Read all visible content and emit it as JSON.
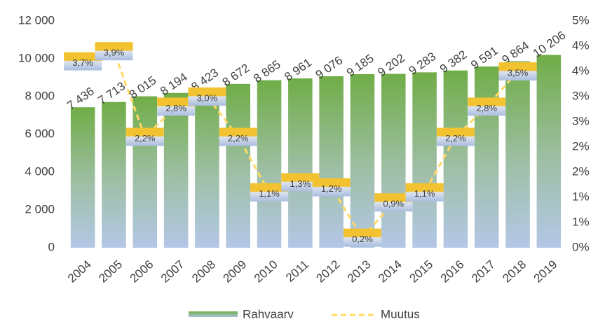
{
  "chart_data": {
    "type": "bar",
    "categories": [
      "2004",
      "2005",
      "2006",
      "2007",
      "2008",
      "2009",
      "2010",
      "2011",
      "2012",
      "2013",
      "2014",
      "2015",
      "2016",
      "2017",
      "2018",
      "2019"
    ],
    "series": [
      {
        "name": "Rahvaarv",
        "type": "bar",
        "color": "#70ad47",
        "values": [
          7436,
          7713,
          8015,
          8194,
          8423,
          8672,
          8865,
          8961,
          9076,
          9185,
          9202,
          9283,
          9382,
          9591,
          9864,
          10206
        ],
        "value_labels": [
          "7 436",
          "7 713",
          "8 015",
          "8 194",
          "8 423",
          "8 672",
          "8 865",
          "8 961",
          "9 076",
          "9 185",
          "9 202",
          "9 283",
          "9 382",
          "9 591",
          "9 864",
          "10 206"
        ]
      },
      {
        "name": "Muutus",
        "type": "line",
        "axis": "y2",
        "color": "#ffd966",
        "values": [
          3.7,
          3.9,
          2.2,
          2.8,
          3.0,
          2.2,
          1.1,
          1.3,
          1.2,
          0.2,
          0.9,
          1.1,
          2.2,
          2.8,
          3.5,
          null
        ],
        "value_labels": [
          "3,7%",
          "3,9%",
          "2,2%",
          "2,8%",
          "3,0%",
          "2,2%",
          "1,1%",
          "1,3%",
          "1,2%",
          "0,2%",
          "0,9%",
          "1,1%",
          "2,2%",
          "2,8%",
          "3,5%",
          null
        ]
      }
    ],
    "ylim": [
      0,
      12000
    ],
    "yticks": [
      {
        "value": 0,
        "label": "0"
      },
      {
        "value": 2000,
        "label": "2 000"
      },
      {
        "value": 4000,
        "label": "4 000"
      },
      {
        "value": 6000,
        "label": "6 000"
      },
      {
        "value": 8000,
        "label": "8 000"
      },
      {
        "value": 10000,
        "label": "10 000"
      },
      {
        "value": 12000,
        "label": "12 000"
      }
    ],
    "y2lim": [
      0,
      4.5
    ],
    "y2ticks": [
      {
        "value": 0,
        "label": "0%"
      },
      {
        "value": 0.5,
        "label": "1%"
      },
      {
        "value": 1.0,
        "label": "1%"
      },
      {
        "value": 1.5,
        "label": "2%"
      },
      {
        "value": 2.0,
        "label": "2%"
      },
      {
        "value": 2.5,
        "label": "3%"
      },
      {
        "value": 3.0,
        "label": "3%"
      },
      {
        "value": 3.5,
        "label": "4%"
      },
      {
        "value": 4.0,
        "label": "4%"
      },
      {
        "value": 4.5,
        "label": "5%"
      }
    ],
    "legend": "bottom"
  }
}
